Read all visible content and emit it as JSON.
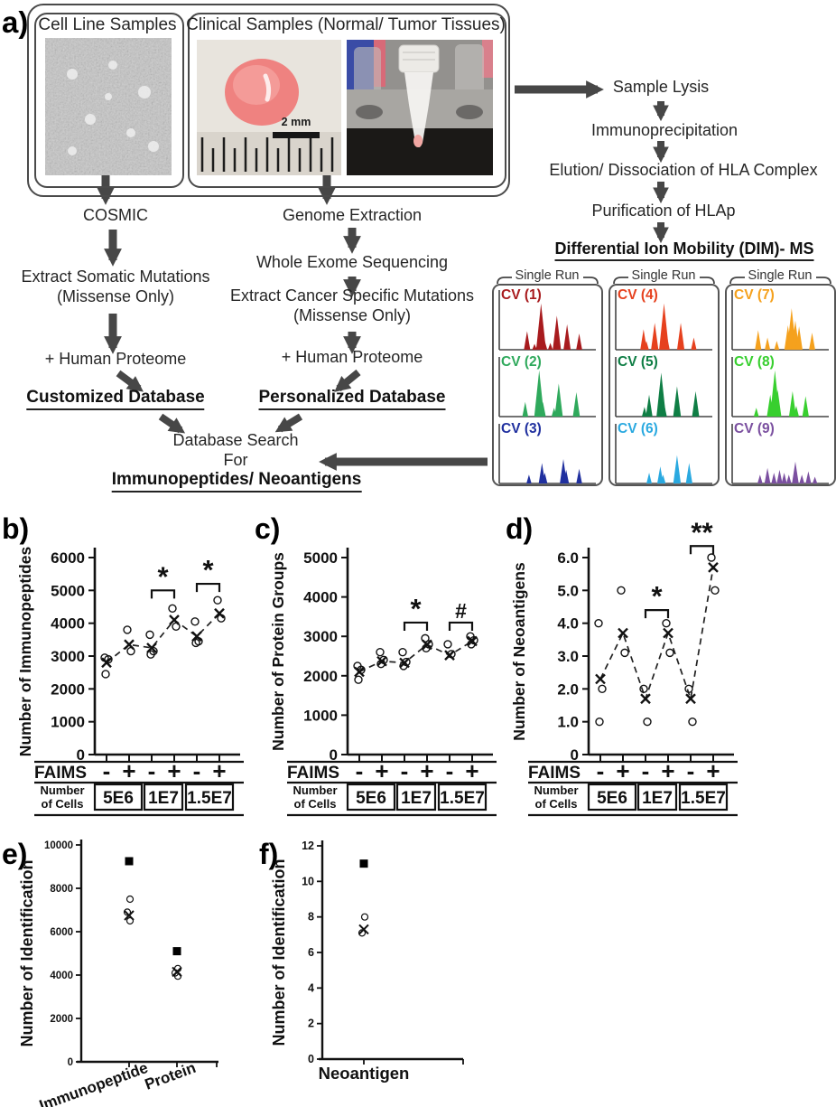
{
  "figure": {
    "panel_labels": {
      "a": "a)"
    }
  },
  "colors": {
    "arrow_gray": "#474747",
    "axis_black": "#111111"
  },
  "flow": {
    "box1_title": "Cell Line Samples",
    "box2_title": "Clinical Samples (Normal/ Tumor Tissues)",
    "scale_bar": "2 mm",
    "cosmic": "COSMIC",
    "extract_somatic_1": "Extract Somatic Mutations",
    "extract_somatic_2": "(Missense Only)",
    "human_proteome_left": "+ Human Proteome",
    "customized_db": "Customized Database",
    "genome_extraction": "Genome Extraction",
    "wes": "Whole Exome Sequencing",
    "extract_cancer_1": "Extract Cancer Specific Mutations",
    "extract_cancer_2": "(Missense Only)",
    "human_proteome_right": "+ Human Proteome",
    "personalized_db": "Personalized Database",
    "db_search_1": "Database Search",
    "db_search_2": "For",
    "db_search_3": "Immunopeptides/ Neoantigens",
    "sample_lysis": "Sample Lysis",
    "immunoprecipitation": "Immunoprecipitation",
    "elution": "Elution/ Dissociation of HLA Complex",
    "purification": "Purification of HLAp",
    "dim_ms": "Differential Ion Mobility (DIM)- MS"
  },
  "spectra": {
    "single_run_label": "Single Run",
    "columns": [
      {
        "panels": [
          {
            "cv": "CV (1)",
            "color": "#A81B1E",
            "peaks": [
              [
                0.28,
                0.38
              ],
              [
                0.36,
                0.12
              ],
              [
                0.4,
                0.16
              ],
              [
                0.43,
                0.95
              ],
              [
                0.47,
                0.18
              ],
              [
                0.53,
                0.14
              ],
              [
                0.6,
                0.7
              ],
              [
                0.71,
                0.52
              ],
              [
                0.84,
                0.33
              ]
            ]
          },
          {
            "cv": "CV (2)",
            "color": "#2FA95C",
            "peaks": [
              [
                0.26,
                0.3
              ],
              [
                0.41,
                0.95
              ],
              [
                0.45,
                0.3
              ],
              [
                0.57,
                0.18
              ],
              [
                0.62,
                0.68
              ],
              [
                0.81,
                0.5
              ]
            ]
          },
          {
            "cv": "CV (3)",
            "color": "#20309F",
            "peaks": [
              [
                0.3,
                0.18
              ],
              [
                0.44,
                0.42
              ],
              [
                0.47,
                0.22
              ],
              [
                0.67,
                0.5
              ],
              [
                0.7,
                0.28
              ],
              [
                0.84,
                0.3
              ]
            ]
          }
        ]
      },
      {
        "panels": [
          {
            "cv": "CV (4)",
            "color": "#E6411E",
            "peaks": [
              [
                0.28,
                0.42
              ],
              [
                0.31,
                0.18
              ],
              [
                0.4,
                0.55
              ],
              [
                0.5,
                0.95
              ],
              [
                0.53,
                0.3
              ],
              [
                0.68,
                0.55
              ],
              [
                0.82,
                0.25
              ]
            ]
          },
          {
            "cv": "CV (5)",
            "color": "#0F7E45",
            "peaks": [
              [
                0.29,
                0.2
              ],
              [
                0.34,
                0.45
              ],
              [
                0.47,
                0.9
              ],
              [
                0.5,
                0.28
              ],
              [
                0.64,
                0.62
              ],
              [
                0.84,
                0.52
              ]
            ]
          },
          {
            "cv": "CV (6)",
            "color": "#2AA9E0",
            "peaks": [
              [
                0.34,
                0.22
              ],
              [
                0.46,
                0.35
              ],
              [
                0.49,
                0.18
              ],
              [
                0.64,
                0.58
              ],
              [
                0.77,
                0.42
              ]
            ]
          }
        ]
      },
      {
        "panels": [
          {
            "cv": "CV (7)",
            "color": "#F5A11D",
            "peaks": [
              [
                0.26,
                0.4
              ],
              [
                0.36,
                0.25
              ],
              [
                0.46,
                0.18
              ],
              [
                0.58,
                0.5
              ],
              [
                0.62,
                0.85
              ],
              [
                0.66,
                0.6
              ],
              [
                0.7,
                0.48
              ],
              [
                0.84,
                0.35
              ]
            ]
          },
          {
            "cv": "CV (8)",
            "color": "#38CF2F",
            "peaks": [
              [
                0.24,
                0.18
              ],
              [
                0.39,
                0.45
              ],
              [
                0.44,
                0.95
              ],
              [
                0.47,
                0.55
              ],
              [
                0.63,
                0.52
              ],
              [
                0.67,
                0.22
              ],
              [
                0.77,
                0.42
              ]
            ]
          },
          {
            "cv": "CV (9)",
            "color": "#7B50A0",
            "peaks": [
              [
                0.28,
                0.18
              ],
              [
                0.36,
                0.32
              ],
              [
                0.43,
                0.22
              ],
              [
                0.49,
                0.28
              ],
              [
                0.54,
                0.22
              ],
              [
                0.59,
                0.18
              ],
              [
                0.66,
                0.45
              ],
              [
                0.73,
                0.18
              ],
              [
                0.8,
                0.25
              ],
              [
                0.87,
                0.14
              ]
            ]
          }
        ]
      }
    ]
  },
  "chart_data": [
    {
      "id": "b",
      "type": "scatter",
      "panel": "b)",
      "ylabel": "Number of Immunopeptides",
      "ylim": [
        0,
        6000
      ],
      "yticks": [
        [
          0,
          "0"
        ],
        [
          1000,
          "1000"
        ],
        [
          2000,
          "2000"
        ],
        [
          3000,
          "3000"
        ],
        [
          4000,
          "4000"
        ],
        [
          5000,
          "5000"
        ],
        [
          6000,
          "6000"
        ]
      ],
      "xaxis": {
        "faims_label": "FAIMS",
        "faims": [
          "-",
          "+",
          "-",
          "+",
          "-",
          "+"
        ],
        "cells_label": [
          "Number",
          "of Cells"
        ],
        "cells": [
          "5E6",
          "1E7",
          "1.5E7"
        ]
      },
      "groups": [
        {
          "circles": [
            2950,
            2900,
            2450
          ],
          "mean": 2800
        },
        {
          "circles": [
            3800,
            3150
          ],
          "mean": 3350
        },
        {
          "circles": [
            3650,
            3150,
            3050
          ],
          "mean": 3250
        },
        {
          "circles": [
            4450,
            3900
          ],
          "mean": 4100
        },
        {
          "circles": [
            4050,
            3450,
            3400
          ],
          "mean": 3600
        },
        {
          "circles": [
            4700,
            4150
          ],
          "mean": 4300
        }
      ],
      "significance": [
        {
          "between": [
            2,
            3
          ],
          "symbol": "*",
          "y": 5000
        },
        {
          "between": [
            4,
            5
          ],
          "symbol": "*",
          "y": 5200
        }
      ]
    },
    {
      "id": "c",
      "type": "scatter",
      "panel": "c)",
      "ylabel": "Number of Protein Groups",
      "ylim": [
        0,
        5000
      ],
      "yticks": [
        [
          0,
          "0"
        ],
        [
          1000,
          "1000"
        ],
        [
          2000,
          "2000"
        ],
        [
          3000,
          "3000"
        ],
        [
          4000,
          "4000"
        ],
        [
          5000,
          "5000"
        ]
      ],
      "xaxis": {
        "faims_label": "FAIMS",
        "faims": [
          "-",
          "+",
          "-",
          "+",
          "-",
          "+"
        ],
        "cells_label": [
          "Number",
          "of Cells"
        ],
        "cells": [
          "5E6",
          "1E7",
          "1.5E7"
        ]
      },
      "groups": [
        {
          "circles": [
            2250,
            2150,
            1900
          ],
          "mean": 2100
        },
        {
          "circles": [
            2600,
            2400,
            2300
          ],
          "mean": 2370
        },
        {
          "circles": [
            2600,
            2350,
            2250
          ],
          "mean": 2330
        },
        {
          "circles": [
            2950,
            2800,
            2700
          ],
          "mean": 2790
        },
        {
          "circles": [
            2800,
            2550
          ],
          "mean": 2520
        },
        {
          "circles": [
            3000,
            2900,
            2800
          ],
          "mean": 2880
        }
      ],
      "significance": [
        {
          "between": [
            2,
            3
          ],
          "symbol": "*",
          "y": 3350
        },
        {
          "between": [
            4,
            5
          ],
          "symbol": "#",
          "y": 3350
        }
      ]
    },
    {
      "id": "d",
      "type": "scatter",
      "panel": "d)",
      "ylabel": "Number of Neoantigens",
      "ylim": [
        0,
        6
      ],
      "yticks": [
        [
          0,
          "0"
        ],
        [
          1,
          "1.0"
        ],
        [
          2,
          "2.0"
        ],
        [
          3,
          "3.0"
        ],
        [
          4,
          "4.0"
        ],
        [
          5,
          "5.0"
        ],
        [
          6,
          "6.0"
        ]
      ],
      "xaxis": {
        "faims_label": "FAIMS",
        "faims": [
          "-",
          "+",
          "-",
          "+",
          "-",
          "+"
        ],
        "cells_label": [
          "Number",
          "of Cells"
        ],
        "cells": [
          "5E6",
          "1E7",
          "1.5E7"
        ]
      },
      "groups": [
        {
          "circles": [
            4.0,
            2.0,
            1.0
          ],
          "mean": 2.3
        },
        {
          "circles": [
            5.0,
            3.1
          ],
          "mean": 3.7
        },
        {
          "circles": [
            2.0,
            1.0
          ],
          "mean": 1.7
        },
        {
          "circles": [
            4.0,
            3.1
          ],
          "mean": 3.7
        },
        {
          "circles": [
            2.0,
            1.0
          ],
          "mean": 1.7
        },
        {
          "circles": [
            6.0,
            5.0
          ],
          "mean": 5.7
        }
      ],
      "significance": [
        {
          "between": [
            2,
            3
          ],
          "symbol": "*",
          "y": 4.4
        },
        {
          "between": [
            4,
            5
          ],
          "symbol": "**",
          "y": 6.35
        }
      ]
    },
    {
      "id": "e",
      "type": "scatter",
      "panel": "e)",
      "ylabel": "Number of Identification",
      "ylim": [
        0,
        10000
      ],
      "yticks": [
        [
          0,
          "0"
        ],
        [
          2000,
          "2000"
        ],
        [
          4000,
          "4000"
        ],
        [
          6000,
          "6000"
        ],
        [
          8000,
          "8000"
        ],
        [
          10000,
          "10000"
        ]
      ],
      "categories": [
        "Immunopeptide",
        "Protein"
      ],
      "points": [
        {
          "category": "Immunopeptide",
          "square": 9250,
          "circles": [
            7500,
            6900,
            6500
          ],
          "mean": 6750
        },
        {
          "category": "Protein",
          "square": 5100,
          "circles": [
            4300,
            4100,
            3950
          ],
          "mean": 4150
        }
      ]
    },
    {
      "id": "f",
      "type": "scatter",
      "panel": "f)",
      "ylabel": "Number of Identification",
      "ylim": [
        0,
        12
      ],
      "yticks": [
        [
          0,
          "0"
        ],
        [
          2,
          "2"
        ],
        [
          4,
          "4"
        ],
        [
          6,
          "6"
        ],
        [
          8,
          "8"
        ],
        [
          10,
          "10"
        ],
        [
          12,
          "12"
        ]
      ],
      "categories": [
        "Neoantigen"
      ],
      "points": [
        {
          "category": "Neoantigen",
          "square": 11,
          "circles": [
            8.0,
            7.1
          ],
          "mean": 7.3
        }
      ]
    }
  ]
}
